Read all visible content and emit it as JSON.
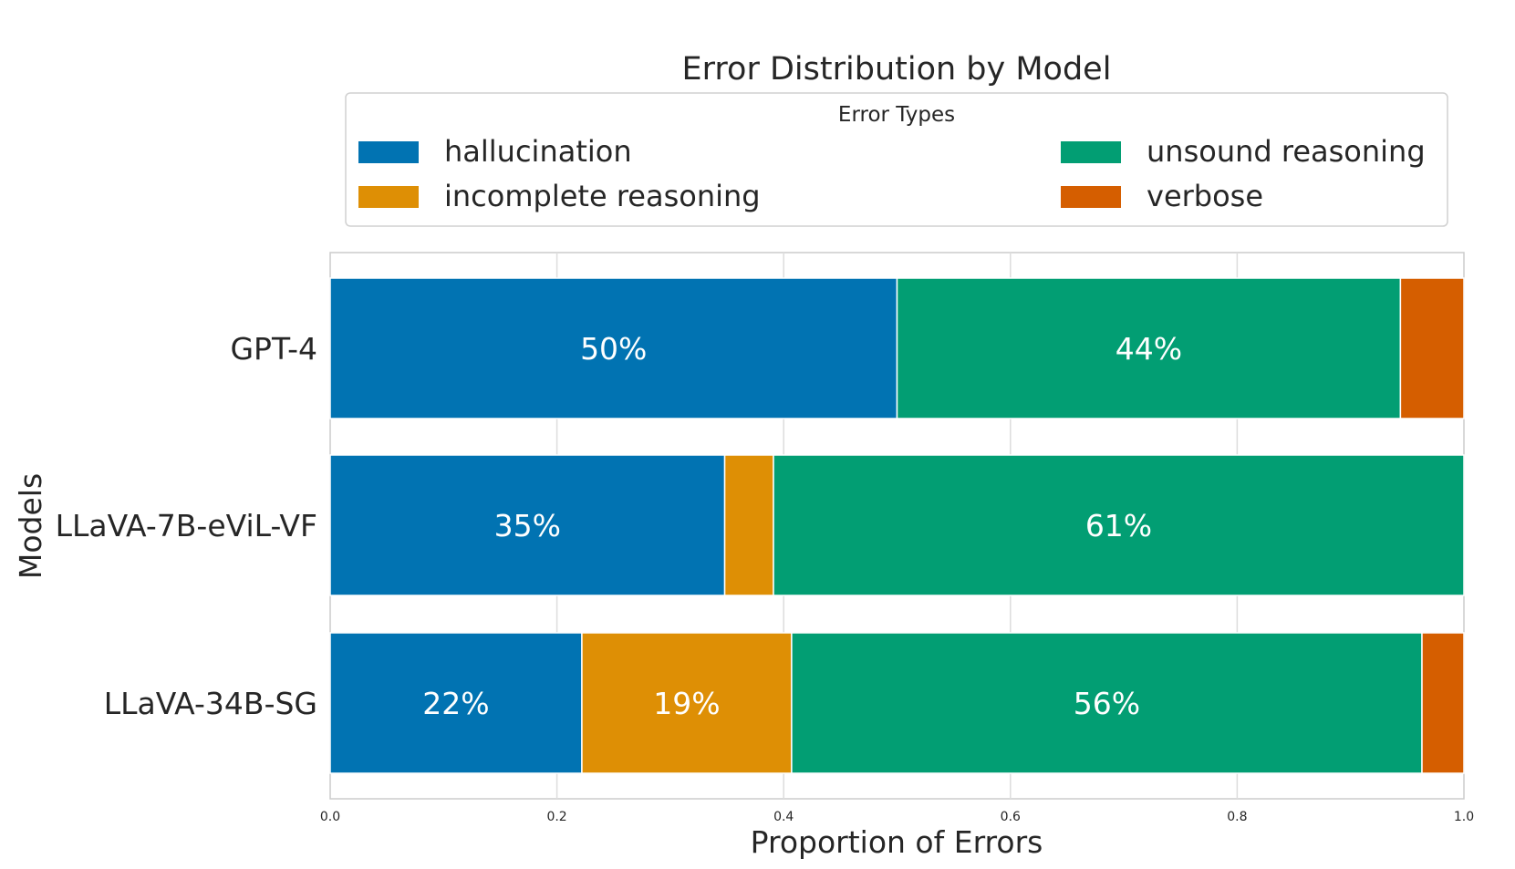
{
  "chart_data": {
    "type": "bar",
    "orientation": "horizontal",
    "stacked": true,
    "title": "Error Distribution by Model",
    "xlabel": "Proportion of Errors",
    "ylabel": "Models",
    "xlim": [
      0,
      1
    ],
    "xticks": [
      "0.0",
      "0.2",
      "0.4",
      "0.6",
      "0.8",
      "1.0"
    ],
    "grid": true,
    "legend": {
      "title": "Error Types",
      "placement": "top-center"
    },
    "categories": [
      "GPT-4",
      "LLaVA-7B-eViL-VF",
      "LLaVA-34B-SG"
    ],
    "series": [
      {
        "name": "hallucination",
        "color": "#0173b2",
        "values": [
          0.5,
          0.348,
          0.222
        ],
        "labels": [
          "50%",
          "35%",
          "22%"
        ]
      },
      {
        "name": "incomplete reasoning",
        "color": "#de8f05",
        "values": [
          0.0,
          0.043,
          0.185
        ],
        "labels": [
          "",
          "",
          "19%"
        ]
      },
      {
        "name": "unsound reasoning",
        "color": "#029e73",
        "values": [
          0.444,
          0.609,
          0.556
        ],
        "labels": [
          "44%",
          "61%",
          "56%"
        ]
      },
      {
        "name": "verbose",
        "color": "#d55e00",
        "values": [
          0.056,
          0.0,
          0.037
        ],
        "labels": [
          "",
          "",
          ""
        ]
      }
    ]
  }
}
